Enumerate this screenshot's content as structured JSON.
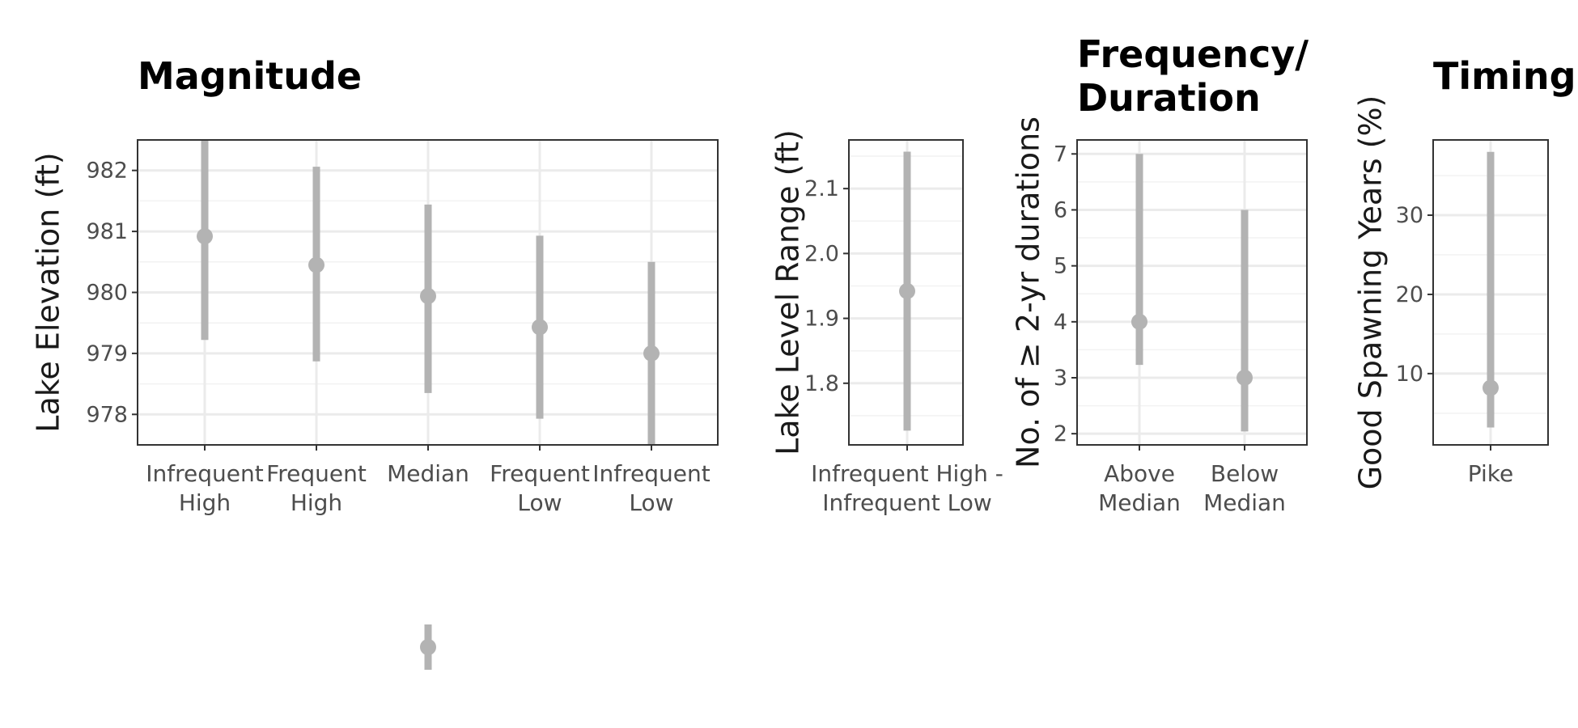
{
  "chart_data": [
    {
      "type": "pointrange",
      "title": "Magnitude",
      "ylabel": "Lake Elevation (ft)",
      "xlabel": "",
      "categories": [
        "Infrequent\nHigh",
        "Frequent\nHigh",
        "Median",
        "Frequent\nLow",
        "Infrequent\nLow"
      ],
      "points": [
        {
          "estimate": 980.92,
          "low": 979.22,
          "high": 982.5
        },
        {
          "estimate": 980.45,
          "low": 978.87,
          "high": 982.06
        },
        {
          "estimate": 979.94,
          "low": 978.35,
          "high": 981.44
        },
        {
          "estimate": 979.43,
          "low": 977.93,
          "high": 980.93
        },
        {
          "estimate": 979.0,
          "low": 977.5,
          "high": 980.5
        }
      ],
      "yticks": [
        978,
        979,
        980,
        981,
        982
      ],
      "ylim": [
        977.5,
        982.5
      ],
      "grid": true
    },
    {
      "type": "pointrange",
      "title": "",
      "ylabel": "Lake Level Range (ft)",
      "xlabel": "",
      "categories": [
        "Infrequent High -\nInfrequent Low"
      ],
      "points": [
        {
          "estimate": 1.942,
          "low": 1.727,
          "high": 2.157
        }
      ],
      "yticks": [
        1.8,
        1.9,
        2.0,
        2.1
      ],
      "ylim": [
        1.705,
        2.175
      ],
      "grid": true
    },
    {
      "type": "pointrange",
      "title": "Frequency/\nDuration",
      "ylabel": "No. of ≥ 2-yr durations",
      "xlabel": "",
      "categories": [
        "Above\nMedian",
        "Below\nMedian"
      ],
      "points": [
        {
          "estimate": 4,
          "low": 3.23,
          "high": 7
        },
        {
          "estimate": 3,
          "low": 2.04,
          "high": 6
        }
      ],
      "yticks": [
        2,
        3,
        4,
        5,
        6,
        7
      ],
      "ylim": [
        1.8,
        7.25
      ],
      "grid": true
    },
    {
      "type": "pointrange",
      "title": "Timing",
      "ylabel": "Good Spawning Years (%)",
      "xlabel": "",
      "categories": [
        "Pike"
      ],
      "points": [
        {
          "estimate": 8.2,
          "low": 3.2,
          "high": 38.0
        }
      ],
      "yticks": [
        10,
        20,
        30
      ],
      "ylim": [
        1.0,
        39.5
      ],
      "grid": true
    },
    {
      "type": "pointrange",
      "title": "",
      "ylabel": "",
      "xlabel": "",
      "categories": [],
      "points": [
        {
          "estimate": null,
          "low": null,
          "high": null
        }
      ],
      "grid": false
    }
  ]
}
